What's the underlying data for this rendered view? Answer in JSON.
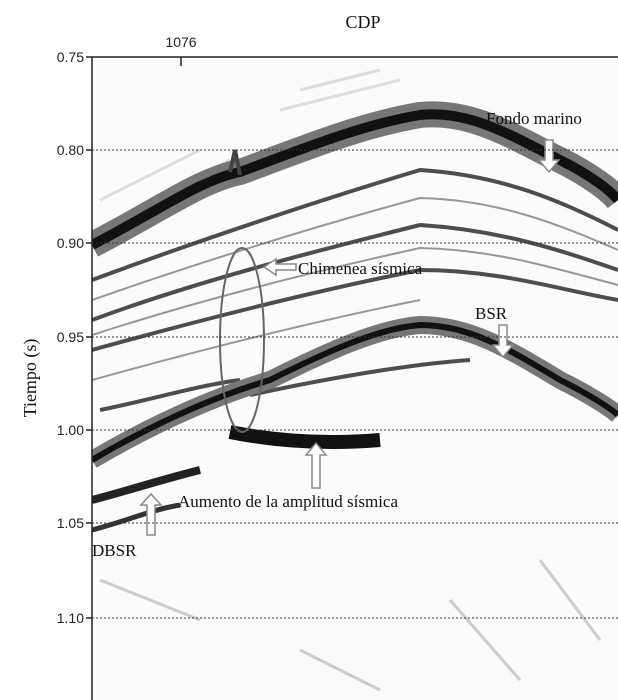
{
  "figure": {
    "x_axis_title": "CDP",
    "x_tick": "1076",
    "y_axis_title": "Tiempo (s)",
    "y_ticks": [
      "0.75",
      "0.80",
      "0.90",
      "0.95",
      "1.00",
      "1.05",
      "1.10"
    ],
    "annotations": [
      "Fondo marino",
      "Chimenea sísmica",
      "BSR",
      "Aumento de la amplitud sísmica",
      "DBSR"
    ]
  }
}
